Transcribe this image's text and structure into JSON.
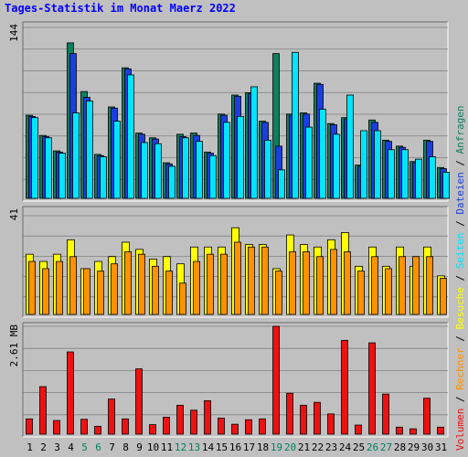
{
  "title": "Tages-Statistik im Monat Maerz 2022",
  "chart_data": [
    {
      "type": "bar",
      "panel": "top",
      "ymax_label": "144",
      "ylim": [
        0,
        144
      ],
      "grid": true,
      "categories": [
        "1",
        "2",
        "3",
        "4",
        "5",
        "6",
        "7",
        "8",
        "9",
        "10",
        "11",
        "12",
        "13",
        "14",
        "15",
        "16",
        "17",
        "18",
        "19",
        "20",
        "21",
        "22",
        "23",
        "24",
        "25",
        "26",
        "27",
        "28",
        "29",
        "30",
        "31"
      ],
      "weekend_categories": [
        "5",
        "6",
        "12",
        "13",
        "19",
        "20",
        "26",
        "27"
      ],
      "series": [
        {
          "name": "Anfragen",
          "color": "#0e7f5e",
          "values": [
            70,
            53,
            40,
            131,
            90,
            37,
            77,
            110,
            55,
            51,
            30,
            54,
            55,
            39,
            71,
            87,
            89,
            65,
            122,
            71,
            72,
            97,
            63,
            68,
            28,
            66,
            49,
            44,
            31,
            49,
            26
          ]
        },
        {
          "name": "Dateien",
          "color": "#1a3fe0",
          "values": [
            69,
            52,
            39,
            122,
            85,
            36,
            76,
            109,
            54,
            50,
            29,
            52,
            53,
            38,
            70,
            86,
            88,
            64,
            44,
            70,
            71,
            96,
            62,
            67,
            27,
            64,
            48,
            43,
            30,
            48,
            25
          ]
        },
        {
          "name": "Seiten",
          "color": "#00e4ff",
          "values": [
            68,
            51,
            38,
            72,
            82,
            35,
            65,
            104,
            47,
            46,
            27,
            51,
            48,
            36,
            64,
            69,
            94,
            49,
            24,
            123,
            60,
            75,
            54,
            87,
            57,
            57,
            41,
            41,
            33,
            35,
            22
          ]
        }
      ]
    },
    {
      "type": "bar",
      "panel": "middle",
      "ymax_label": "41",
      "ylim": [
        0,
        41
      ],
      "grid": true,
      "series": [
        {
          "name": "Besuche",
          "color": "#ffff00",
          "values": [
            25,
            22,
            25,
            31,
            19,
            22,
            24,
            30,
            27,
            23,
            24,
            21,
            28,
            28,
            28,
            36,
            29,
            29,
            19,
            33,
            29,
            28,
            31,
            34,
            20,
            28,
            20,
            28,
            20,
            28,
            16
          ]
        },
        {
          "name": "Rechner",
          "color": "#ff9200",
          "values": [
            22,
            19,
            22,
            24,
            19,
            18,
            21,
            26,
            25,
            20,
            18,
            13,
            22,
            25,
            25,
            30,
            28,
            28,
            18,
            26,
            26,
            24,
            27,
            26,
            18,
            24,
            19,
            24,
            24,
            24,
            15
          ]
        }
      ]
    },
    {
      "type": "bar",
      "panel": "bottom",
      "ymax_label": "2.61 MB",
      "ylim": [
        0,
        2.61
      ],
      "grid": true,
      "series": [
        {
          "name": "Volumen",
          "color": "#ee1111",
          "values": [
            0.37,
            1.15,
            0.33,
            1.99,
            0.36,
            0.19,
            0.85,
            0.37,
            1.58,
            0.23,
            0.41,
            0.7,
            0.58,
            0.81,
            0.39,
            0.24,
            0.35,
            0.37,
            2.61,
            0.99,
            0.7,
            0.77,
            0.49,
            2.27,
            0.22,
            2.21,
            0.97,
            0.17,
            0.13,
            0.87,
            0.17
          ]
        }
      ]
    }
  ],
  "legend": {
    "anfragen": "Anfragen",
    "dateien": "Dateien",
    "seiten": "Seiten",
    "besuche": "Besuche",
    "rechner": "Rechner",
    "volumen": "Volumen",
    "sep": "/"
  },
  "colors": {
    "background": "#c0c0c0",
    "title": "#0000ff",
    "weekend_label": "#00805f",
    "weekday_label": "#000000",
    "grid": "#808080"
  }
}
